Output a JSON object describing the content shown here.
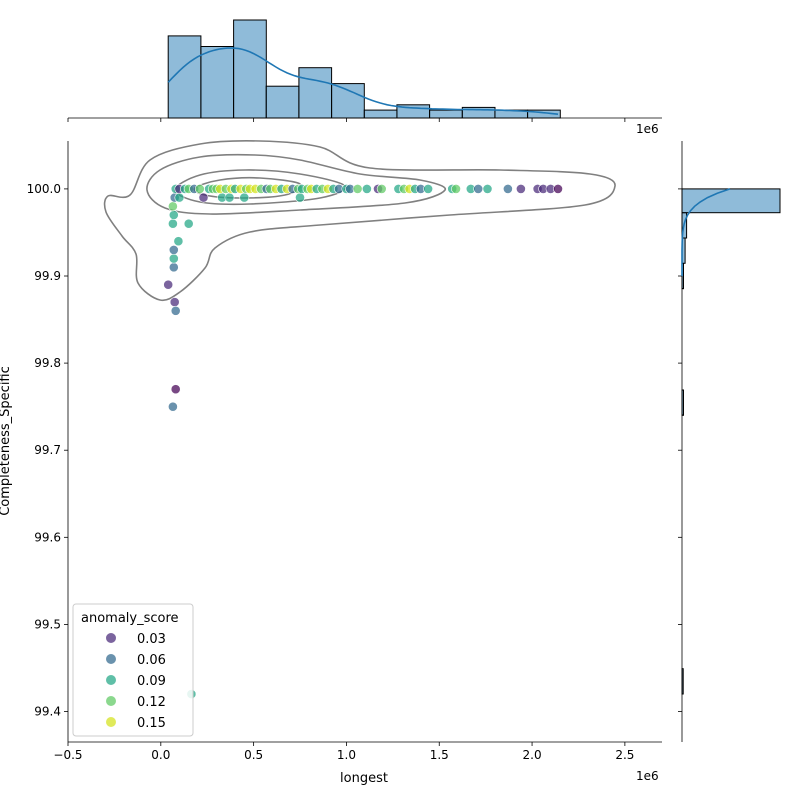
{
  "chart_data": {
    "type": "scatter",
    "subtype": "jointplot",
    "xlabel": "longest",
    "ylabel": "Completeness_Specific",
    "x_offset_label": "1e6",
    "xlim": [
      -500000,
      2700000
    ],
    "ylim": [
      99.365,
      100.055
    ],
    "x_ticks": [
      -500000,
      0,
      500000,
      1000000,
      1500000,
      2000000,
      2500000
    ],
    "x_tick_labels": [
      "−0.5",
      "0.0",
      "0.5",
      "1.0",
      "1.5",
      "2.0",
      "2.5"
    ],
    "y_ticks": [
      99.4,
      99.5,
      99.6,
      99.7,
      99.8,
      99.9,
      100.0
    ],
    "y_tick_labels": [
      "99.4",
      "99.5",
      "99.6",
      "99.7",
      "99.8",
      "99.9",
      "100.0"
    ],
    "grid": false,
    "legend": {
      "title": "anomaly_score",
      "placement": "lower-left",
      "entries": [
        {
          "label": "0.03",
          "color": "#482878"
        },
        {
          "label": "0.06",
          "color": "#31688e"
        },
        {
          "label": "0.09",
          "color": "#21a685"
        },
        {
          "label": "0.12",
          "color": "#5ec962"
        },
        {
          "label": "0.15",
          "color": "#d4e21b"
        }
      ]
    },
    "scatter_points": [
      {
        "x": 40000,
        "y": 99.89,
        "c": "#482878"
      },
      {
        "x": 65000,
        "y": 99.75,
        "c": "#31688e"
      },
      {
        "x": 75000,
        "y": 99.87,
        "c": "#482878"
      },
      {
        "x": 80000,
        "y": 99.86,
        "c": "#31688e"
      },
      {
        "x": 80000,
        "y": 99.77,
        "c": "#440154"
      },
      {
        "x": 165000,
        "y": 99.42,
        "c": "#21a685"
      },
      {
        "x": 70000,
        "y": 99.91,
        "c": "#31688e"
      },
      {
        "x": 70000,
        "y": 99.92,
        "c": "#21a685"
      },
      {
        "x": 70000,
        "y": 99.93,
        "c": "#31688e"
      },
      {
        "x": 65000,
        "y": 99.96,
        "c": "#21a685"
      },
      {
        "x": 70000,
        "y": 99.97,
        "c": "#21a685"
      },
      {
        "x": 65000,
        "y": 99.98,
        "c": "#5ec962"
      },
      {
        "x": 95000,
        "y": 99.94,
        "c": "#21a685"
      },
      {
        "x": 150000,
        "y": 99.96,
        "c": "#21a685"
      },
      {
        "x": 75000,
        "y": 99.99,
        "c": "#31688e"
      },
      {
        "x": 100000,
        "y": 99.99,
        "c": "#21a685"
      },
      {
        "x": 230000,
        "y": 99.99,
        "c": "#482878"
      },
      {
        "x": 330000,
        "y": 99.99,
        "c": "#21a685"
      },
      {
        "x": 370000,
        "y": 99.99,
        "c": "#21a685"
      },
      {
        "x": 450000,
        "y": 99.99,
        "c": "#21a685"
      },
      {
        "x": 750000,
        "y": 99.99,
        "c": "#21a685"
      },
      {
        "x": 80000,
        "y": 100.0,
        "c": "#21a685"
      },
      {
        "x": 100000,
        "y": 100.0,
        "c": "#482878"
      },
      {
        "x": 130000,
        "y": 100.0,
        "c": "#21a685"
      },
      {
        "x": 150000,
        "y": 100.0,
        "c": "#5ec962"
      },
      {
        "x": 180000,
        "y": 100.0,
        "c": "#31688e"
      },
      {
        "x": 210000,
        "y": 100.0,
        "c": "#5ec962"
      },
      {
        "x": 260000,
        "y": 100.0,
        "c": "#21a685"
      },
      {
        "x": 280000,
        "y": 100.0,
        "c": "#5ec962"
      },
      {
        "x": 300000,
        "y": 100.0,
        "c": "#5ec962"
      },
      {
        "x": 320000,
        "y": 100.0,
        "c": "#d4e21b"
      },
      {
        "x": 350000,
        "y": 100.0,
        "c": "#5ec962"
      },
      {
        "x": 380000,
        "y": 100.0,
        "c": "#d4e21b"
      },
      {
        "x": 400000,
        "y": 100.0,
        "c": "#21a685"
      },
      {
        "x": 430000,
        "y": 100.0,
        "c": "#d4e21b"
      },
      {
        "x": 460000,
        "y": 100.0,
        "c": "#5ec962"
      },
      {
        "x": 480000,
        "y": 100.0,
        "c": "#d4e21b"
      },
      {
        "x": 510000,
        "y": 100.0,
        "c": "#d4e21b"
      },
      {
        "x": 540000,
        "y": 100.0,
        "c": "#5ec962"
      },
      {
        "x": 570000,
        "y": 100.0,
        "c": "#31688e"
      },
      {
        "x": 590000,
        "y": 100.0,
        "c": "#5ec962"
      },
      {
        "x": 620000,
        "y": 100.0,
        "c": "#d4e21b"
      },
      {
        "x": 650000,
        "y": 100.0,
        "c": "#21a685"
      },
      {
        "x": 680000,
        "y": 100.0,
        "c": "#d4e21b"
      },
      {
        "x": 710000,
        "y": 100.0,
        "c": "#31688e"
      },
      {
        "x": 740000,
        "y": 100.0,
        "c": "#5ec962"
      },
      {
        "x": 760000,
        "y": 100.0,
        "c": "#21a685"
      },
      {
        "x": 790000,
        "y": 100.0,
        "c": "#5ec962"
      },
      {
        "x": 810000,
        "y": 100.0,
        "c": "#d4e21b"
      },
      {
        "x": 840000,
        "y": 100.0,
        "c": "#21a685"
      },
      {
        "x": 870000,
        "y": 100.0,
        "c": "#5ec962"
      },
      {
        "x": 900000,
        "y": 100.0,
        "c": "#d4e21b"
      },
      {
        "x": 930000,
        "y": 100.0,
        "c": "#21a685"
      },
      {
        "x": 960000,
        "y": 100.0,
        "c": "#31688e"
      },
      {
        "x": 1000000,
        "y": 100.0,
        "c": "#21a685"
      },
      {
        "x": 1020000,
        "y": 100.0,
        "c": "#31688e"
      },
      {
        "x": 1060000,
        "y": 100.0,
        "c": "#5ec962"
      },
      {
        "x": 1110000,
        "y": 100.0,
        "c": "#21a685"
      },
      {
        "x": 1170000,
        "y": 100.0,
        "c": "#482878"
      },
      {
        "x": 1190000,
        "y": 100.0,
        "c": "#5ec962"
      },
      {
        "x": 1280000,
        "y": 100.0,
        "c": "#21a685"
      },
      {
        "x": 1310000,
        "y": 100.0,
        "c": "#5ec962"
      },
      {
        "x": 1340000,
        "y": 100.0,
        "c": "#d4e21b"
      },
      {
        "x": 1370000,
        "y": 100.0,
        "c": "#21a685"
      },
      {
        "x": 1400000,
        "y": 100.0,
        "c": "#31688e"
      },
      {
        "x": 1440000,
        "y": 100.0,
        "c": "#21a685"
      },
      {
        "x": 1570000,
        "y": 100.0,
        "c": "#21a685"
      },
      {
        "x": 1590000,
        "y": 100.0,
        "c": "#5ec962"
      },
      {
        "x": 1670000,
        "y": 100.0,
        "c": "#21a685"
      },
      {
        "x": 1710000,
        "y": 100.0,
        "c": "#31688e"
      },
      {
        "x": 1760000,
        "y": 100.0,
        "c": "#21a685"
      },
      {
        "x": 1870000,
        "y": 100.0,
        "c": "#31688e"
      },
      {
        "x": 1940000,
        "y": 100.0,
        "c": "#482878"
      },
      {
        "x": 2030000,
        "y": 100.0,
        "c": "#482878"
      },
      {
        "x": 2060000,
        "y": 100.0,
        "c": "#482878"
      },
      {
        "x": 2100000,
        "y": 100.0,
        "c": "#482878"
      },
      {
        "x": 2140000,
        "y": 100.0,
        "c": "#440154"
      }
    ],
    "x_histogram": {
      "bin_edges": [
        40000,
        216000,
        392000,
        568000,
        744000,
        920000,
        1096000,
        1272000,
        1448000,
        1624000,
        1800000,
        1976000,
        2152000
      ],
      "counts": [
        31,
        27,
        37,
        12,
        19,
        13,
        3,
        5,
        3,
        4,
        3,
        3
      ]
    },
    "y_histogram": {
      "bin_edges": [
        99.42,
        99.4491,
        99.4782,
        99.5073,
        99.5364,
        99.5655,
        99.5945,
        99.6236,
        99.6527,
        99.6818,
        99.7109,
        99.74,
        99.7691,
        99.7982,
        99.8273,
        99.8564,
        99.8855,
        99.9145,
        99.9436,
        99.9727,
        100.0
      ],
      "counts": [
        1,
        0,
        0,
        0,
        0,
        0,
        0,
        0,
        0,
        0,
        0,
        2,
        0,
        0,
        0,
        0,
        2,
        4,
        6,
        128
      ]
    }
  }
}
